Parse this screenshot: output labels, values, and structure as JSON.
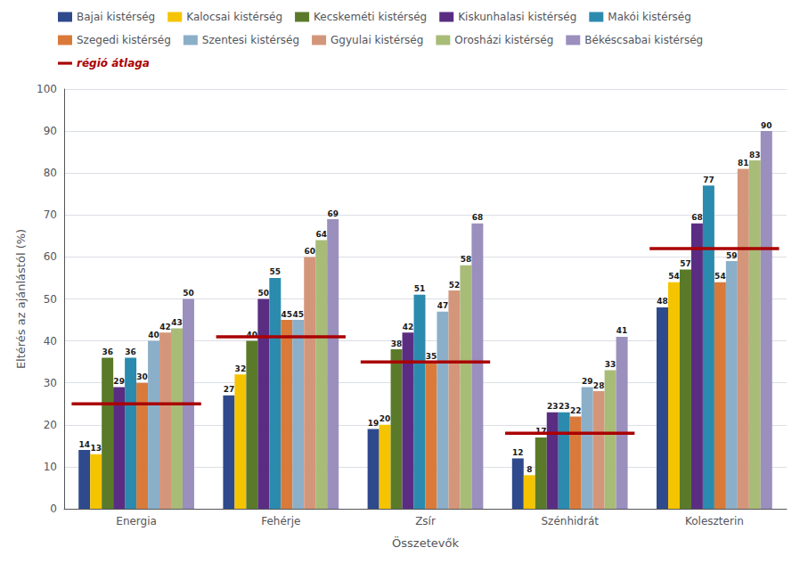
{
  "chart_data": {
    "type": "bar",
    "categories": [
      "Energia",
      "Fehérje",
      "Zsír",
      "Szénhidrát",
      "Koleszterin"
    ],
    "series": [
      {
        "name": "Bajai kistérség",
        "color": "#2E4A8C",
        "values": [
          14,
          27,
          19,
          12,
          48
        ]
      },
      {
        "name": "Kalocsai kistérség",
        "color": "#F5C400",
        "values": [
          13,
          32,
          20,
          8,
          54
        ]
      },
      {
        "name": "Kecskeméti kistérség",
        "color": "#5A7A2A",
        "values": [
          36,
          40,
          38,
          17,
          57
        ]
      },
      {
        "name": "Kiskunhalasi kistérség",
        "color": "#5A2D82",
        "values": [
          29,
          50,
          42,
          23,
          68
        ]
      },
      {
        "name": "Makói kistérség",
        "color": "#2B8BAE",
        "values": [
          36,
          55,
          51,
          23,
          77
        ]
      },
      {
        "name": "Szegedi kistérség",
        "color": "#D97A3A",
        "values": [
          30,
          45,
          35,
          22,
          54
        ]
      },
      {
        "name": "Szentesi kistérség",
        "color": "#8BAFC8",
        "values": [
          40,
          45,
          47,
          29,
          59
        ]
      },
      {
        "name": "Ggyulai kistérség",
        "color": "#D4967A",
        "values": [
          42,
          60,
          52,
          28,
          81
        ]
      },
      {
        "name": "Orosházi kistérség",
        "color": "#A8BC78",
        "values": [
          43,
          64,
          58,
          33,
          83
        ]
      },
      {
        "name": "Békéscsabai kistérség",
        "color": "#9B8FBE",
        "values": [
          50,
          69,
          68,
          41,
          90
        ]
      },
      {
        "name": "régió átlaga",
        "type": "hline",
        "color": "#AA0000",
        "values": [
          25,
          41,
          35,
          18,
          62
        ]
      }
    ],
    "xlabel": "Összetevők",
    "ylabel": "Eltérés az ajánlástól (%)",
    "ylim": [
      0,
      100
    ],
    "yticks": [
      0,
      10,
      20,
      30,
      40,
      50,
      60,
      70,
      80,
      90,
      100
    ],
    "grid": true,
    "legend": "upper left",
    "data_labels": true
  }
}
